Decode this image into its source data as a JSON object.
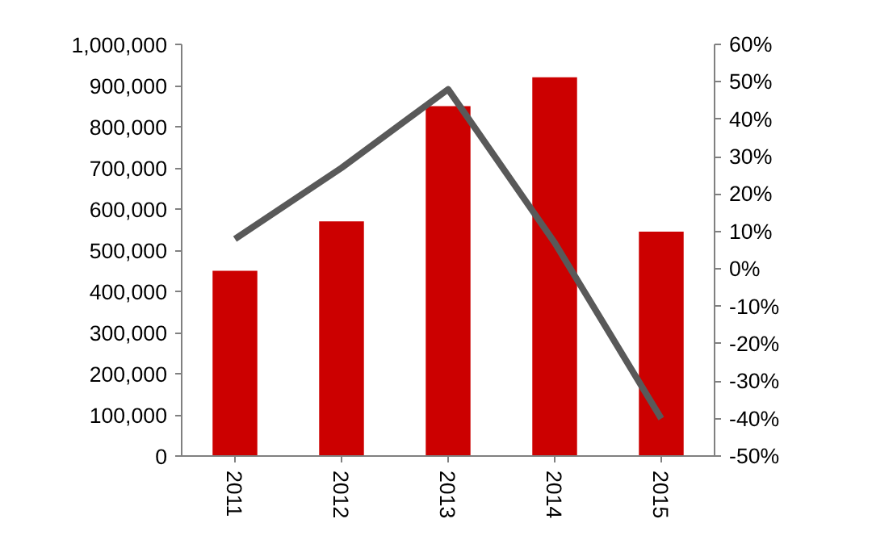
{
  "chart_data": {
    "type": "bar",
    "categories": [
      "2011",
      "2012",
      "2013",
      "2014",
      "2015"
    ],
    "series": [
      {
        "color": "#cc0000",
        "values": [
          450000,
          570000,
          850000,
          920000,
          545000
        ]
      },
      {
        "type": "line",
        "axis": "y2",
        "color": "#595959",
        "values": [
          8,
          27,
          48,
          7,
          -40
        ]
      }
    ],
    "ylim": [
      0,
      1000000
    ],
    "yticks": [
      {
        "value": 0,
        "label": "0"
      },
      {
        "value": 100000,
        "label": "100,000"
      },
      {
        "value": 200000,
        "label": "200,000"
      },
      {
        "value": 300000,
        "label": "300,000"
      },
      {
        "value": 400000,
        "label": "400,000"
      },
      {
        "value": 500000,
        "label": "500,000"
      },
      {
        "value": 600000,
        "label": "600,000"
      },
      {
        "value": 700000,
        "label": "700,000"
      },
      {
        "value": 800000,
        "label": "800,000"
      },
      {
        "value": 900000,
        "label": "900,000"
      },
      {
        "value": 1000000,
        "label": "1,000,000"
      }
    ],
    "y2lim": [
      -50,
      60
    ],
    "y2ticks": [
      {
        "value": -50,
        "label": "-50%"
      },
      {
        "value": -40,
        "label": "-40%"
      },
      {
        "value": -30,
        "label": "-30%"
      },
      {
        "value": -20,
        "label": "-20%"
      },
      {
        "value": -10,
        "label": "-10%"
      },
      {
        "value": 0,
        "label": "0%"
      },
      {
        "value": 10,
        "label": "10%"
      },
      {
        "value": 20,
        "label": "20%"
      },
      {
        "value": 30,
        "label": "30%"
      },
      {
        "value": 40,
        "label": "40%"
      },
      {
        "value": 50,
        "label": "50%"
      },
      {
        "value": 60,
        "label": "60%"
      }
    ],
    "grid": false,
    "marker": "none",
    "line_style": "solid"
  }
}
